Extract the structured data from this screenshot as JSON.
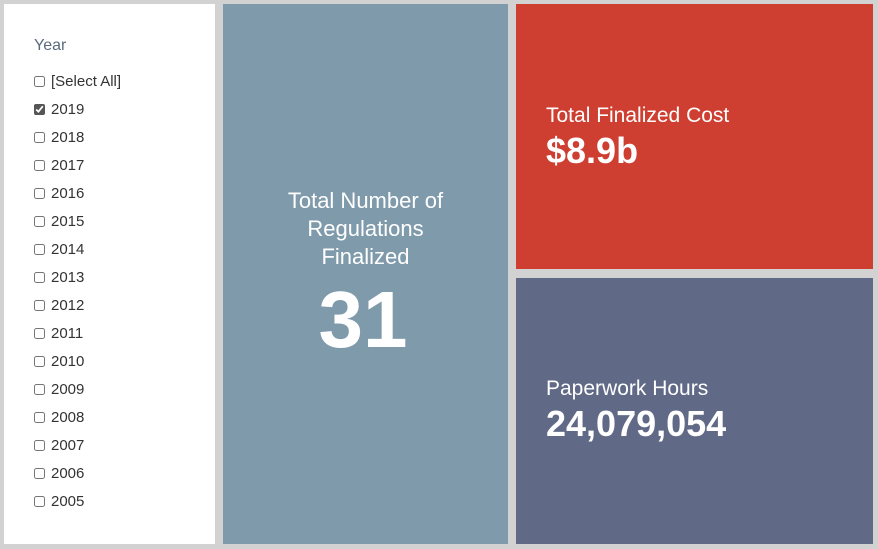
{
  "filter": {
    "title": "Year",
    "options": [
      {
        "label": "[Select All]",
        "checked": false
      },
      {
        "label": "2019",
        "checked": true
      },
      {
        "label": "2018",
        "checked": false
      },
      {
        "label": "2017",
        "checked": false
      },
      {
        "label": "2016",
        "checked": false
      },
      {
        "label": "2015",
        "checked": false
      },
      {
        "label": "2014",
        "checked": false
      },
      {
        "label": "2013",
        "checked": false
      },
      {
        "label": "2012",
        "checked": false
      },
      {
        "label": "2011",
        "checked": false
      },
      {
        "label": "2010",
        "checked": false
      },
      {
        "label": "2009",
        "checked": false
      },
      {
        "label": "2008",
        "checked": false
      },
      {
        "label": "2007",
        "checked": false
      },
      {
        "label": "2006",
        "checked": false
      },
      {
        "label": "2005",
        "checked": false
      }
    ]
  },
  "cards": {
    "regulations": {
      "label": "Total Number of Regulations Finalized",
      "value": "31",
      "color": "#7f9aab"
    },
    "cost": {
      "label": "Total Finalized Cost",
      "value": "$8.9b",
      "color": "#cf3f31"
    },
    "hours": {
      "label": "Paperwork Hours",
      "value": "24,079,054",
      "color": "#606a87"
    }
  }
}
